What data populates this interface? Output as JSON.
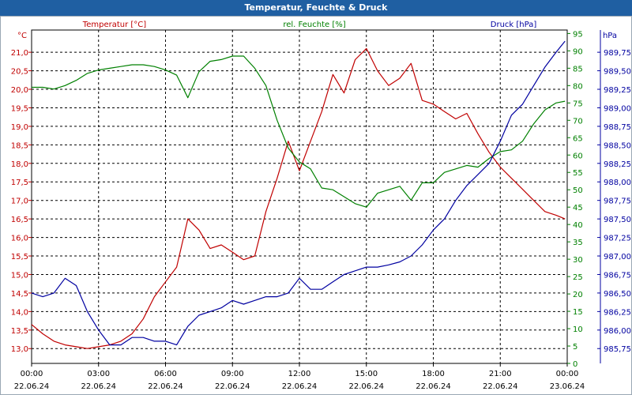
{
  "chart_data": {
    "type": "line",
    "title": "Temperatur, Feuchte & Druck",
    "x_ticks": [
      {
        "time": "00:00",
        "date": "22.06.24"
      },
      {
        "time": "03:00",
        "date": "22.06.24"
      },
      {
        "time": "06:00",
        "date": "22.06.24"
      },
      {
        "time": "09:00",
        "date": "22.06.24"
      },
      {
        "time": "12:00",
        "date": "22.06.24"
      },
      {
        "time": "15:00",
        "date": "22.06.24"
      },
      {
        "time": "18:00",
        "date": "22.06.24"
      },
      {
        "time": "21:00",
        "date": "22.06.24"
      },
      {
        "time": "00:00",
        "date": "23.06.24"
      }
    ],
    "xlim": [
      0,
      24
    ],
    "axes": {
      "temperature": {
        "label": "Temperatur [°C]",
        "unit": "°C",
        "color": "#c00000",
        "ylim": [
          12.6,
          21.6
        ],
        "ticks": [
          "13,0",
          "13,5",
          "14,0",
          "14,5",
          "15,0",
          "15,5",
          "16,0",
          "16,5",
          "17,0",
          "17,5",
          "18,0",
          "18,5",
          "19,0",
          "19,5",
          "20,0",
          "20,5",
          "21,0"
        ]
      },
      "humidity": {
        "label": "rel. Feuchte [%]",
        "unit": "%",
        "color": "#008000",
        "ylim": [
          0,
          96
        ],
        "ticks": [
          "0",
          "5",
          "10",
          "15",
          "20",
          "25",
          "30",
          "35",
          "40",
          "45",
          "50",
          "55",
          "60",
          "65",
          "70",
          "75",
          "80",
          "85",
          "90",
          "95"
        ]
      },
      "pressure": {
        "label": "Druck [hPa]",
        "unit": "hPa",
        "color": "#0000a0",
        "ylim": [
          985.55,
          990.05
        ],
        "ticks": [
          "985,75",
          "986,00",
          "986,25",
          "986,50",
          "986,75",
          "987,00",
          "987,25",
          "987,50",
          "987,75",
          "988,00",
          "988,25",
          "988,50",
          "988,75",
          "989,00",
          "989,25",
          "989,50",
          "989,75"
        ]
      }
    },
    "series": [
      {
        "name": "Temperatur",
        "axis": "temperature",
        "color": "#c00000",
        "x": [
          0,
          0.5,
          1,
          1.5,
          2,
          2.5,
          3,
          3.5,
          4,
          4.5,
          5,
          5.5,
          6,
          6.5,
          7,
          7.5,
          8,
          8.5,
          9,
          9.5,
          10,
          10.5,
          11,
          11.5,
          12,
          12.5,
          13,
          13.5,
          14,
          14.5,
          15,
          15.5,
          16,
          16.5,
          17,
          17.5,
          18,
          18.5,
          19,
          19.5,
          20,
          20.5,
          21,
          21.5,
          22,
          22.5,
          23,
          23.5,
          23.9
        ],
        "values": [
          13.65,
          13.4,
          13.2,
          13.1,
          13.05,
          13.0,
          13.05,
          13.1,
          13.2,
          13.4,
          13.8,
          14.4,
          14.8,
          15.2,
          16.5,
          16.2,
          15.7,
          15.8,
          15.6,
          15.4,
          15.5,
          16.7,
          17.6,
          18.6,
          17.8,
          18.6,
          19.4,
          20.4,
          19.9,
          20.8,
          21.1,
          20.5,
          20.1,
          20.3,
          20.7,
          19.7,
          19.6,
          19.4,
          19.2,
          19.35,
          18.8,
          18.3,
          17.9,
          17.6,
          17.3,
          17.0,
          16.7,
          16.6,
          16.5
        ]
      },
      {
        "name": "rel. Feuchte",
        "axis": "humidity",
        "color": "#008000",
        "x": [
          0,
          0.5,
          1,
          1.5,
          2,
          2.5,
          3,
          3.5,
          4,
          4.5,
          5,
          5.5,
          6,
          6.5,
          7,
          7.5,
          8,
          8.5,
          9,
          9.5,
          10,
          10.5,
          11,
          11.5,
          12,
          12.5,
          13,
          13.5,
          14,
          14.5,
          15,
          15.5,
          16,
          16.5,
          17,
          17.5,
          18,
          18.5,
          19,
          19.5,
          20,
          20.5,
          21,
          21.5,
          22,
          22.5,
          23,
          23.5,
          23.9
        ],
        "values": [
          79.5,
          79.5,
          79.0,
          80.0,
          81.5,
          83.5,
          84.5,
          85.0,
          85.5,
          86.0,
          86.0,
          85.5,
          84.5,
          83.0,
          76.5,
          84.0,
          87.0,
          87.5,
          88.5,
          88.5,
          85.0,
          80.0,
          70.0,
          62.0,
          58.0,
          56.0,
          50.5,
          50.0,
          48.0,
          46.0,
          45.0,
          49.0,
          50.0,
          51.0,
          47.0,
          52.0,
          52.0,
          55.0,
          56.0,
          57.0,
          56.5,
          59.0,
          61.0,
          61.5,
          64.0,
          69.0,
          73.0,
          75.0,
          75.5
        ]
      },
      {
        "name": "Druck",
        "axis": "pressure",
        "color": "#0000a0",
        "x": [
          0,
          0.5,
          1,
          1.5,
          2,
          2.5,
          3,
          3.5,
          4,
          4.5,
          5,
          5.5,
          6,
          6.5,
          7,
          7.5,
          8,
          8.5,
          9,
          9.5,
          10,
          10.5,
          11,
          11.5,
          12,
          12.5,
          13,
          13.5,
          14,
          14.5,
          15,
          15.5,
          16,
          16.5,
          17,
          17.5,
          18,
          18.5,
          19,
          19.5,
          20,
          20.5,
          21,
          21.5,
          22,
          22.5,
          23,
          23.5,
          23.9
        ],
        "values": [
          986.5,
          986.45,
          986.5,
          986.7,
          986.6,
          986.25,
          986.0,
          985.8,
          985.8,
          985.9,
          985.9,
          985.85,
          985.85,
          985.8,
          986.05,
          986.2,
          986.25,
          986.3,
          986.4,
          986.35,
          986.4,
          986.45,
          986.45,
          986.5,
          986.7,
          986.55,
          986.55,
          986.65,
          986.75,
          986.8,
          986.85,
          986.85,
          986.88,
          986.92,
          987.0,
          987.15,
          987.35,
          987.5,
          987.75,
          987.95,
          988.1,
          988.25,
          988.55,
          988.9,
          989.05,
          989.3,
          989.55,
          989.75,
          989.9
        ]
      }
    ]
  }
}
